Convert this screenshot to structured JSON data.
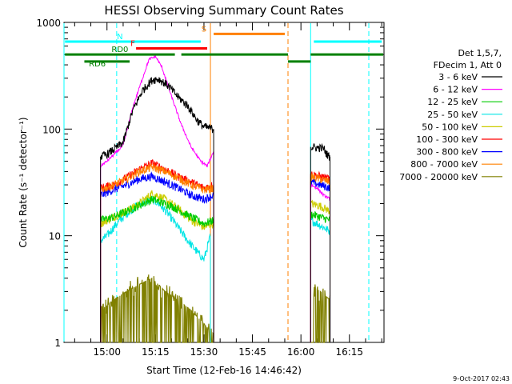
{
  "chart_data": {
    "type": "line",
    "title": "HESSI Observing Summary Count Rates",
    "xlabel": "Start Time (12-Feb-16 14:46:42)",
    "ylabel": "Count Rate (s⁻¹ detector⁻¹)",
    "yscale": "log",
    "ylim": [
      1,
      1000
    ],
    "xlim": [
      "14:46:42",
      "16:25:42"
    ],
    "yticks": [
      "1",
      "10",
      "100",
      "1000"
    ],
    "xticks": [
      "15:00",
      "15:15",
      "15:30",
      "15:45",
      "16:00",
      "16:15"
    ],
    "footer": "9-Oct-2017 02:43",
    "legend": {
      "header": [
        "Det 1,5,7,",
        "FDecim 1, Att 0"
      ],
      "placement": "right"
    },
    "series": [
      {
        "name": "3 - 6 keV",
        "color": "#000000",
        "x": [
          "14:58",
          "15:00",
          "15:05",
          "15:08",
          "15:11",
          "15:14",
          "15:16",
          "15:19",
          "15:22",
          "15:25",
          "15:28",
          "15:30",
          "15:32",
          "15:33",
          "16:03",
          "16:05",
          "16:07",
          "16:08",
          "16:09"
        ],
        "y": [
          55,
          58,
          75,
          150,
          230,
          290,
          295,
          255,
          200,
          165,
          120,
          105,
          102,
          100,
          68,
          67,
          66,
          58,
          55
        ]
      },
      {
        "name": "6 - 12 keV",
        "color": "#ff00ff",
        "x": [
          "14:58",
          "15:00",
          "15:05",
          "15:08",
          "15:11",
          "15:13",
          "15:15",
          "15:17",
          "15:20",
          "15:23",
          "15:26",
          "15:29",
          "15:31",
          "15:33",
          "16:03",
          "16:05",
          "16:07",
          "16:09"
        ],
        "y": [
          45,
          50,
          70,
          160,
          300,
          450,
          480,
          380,
          200,
          110,
          68,
          50,
          45,
          62,
          30,
          28,
          24,
          22
        ]
      },
      {
        "name": "12 - 25 keV",
        "color": "#00cc00",
        "x": [
          "14:58",
          "15:02",
          "15:08",
          "15:14",
          "15:20",
          "15:26",
          "15:30",
          "15:33",
          "16:03",
          "16:06",
          "16:09"
        ],
        "y": [
          14,
          15,
          18,
          22,
          19,
          15,
          13,
          14,
          16,
          15,
          14
        ]
      },
      {
        "name": "25 - 50 keV",
        "color": "#00e5e5",
        "x": [
          "14:58",
          "15:00",
          "15:03",
          "15:06",
          "15:09",
          "15:12",
          "15:14",
          "15:16",
          "15:19",
          "15:22",
          "15:25",
          "15:28",
          "15:30",
          "15:32",
          "16:03",
          "16:05",
          "16:07",
          "16:09"
        ],
        "y": [
          9,
          10,
          13,
          16,
          19,
          21,
          22,
          20,
          16,
          12,
          9,
          7,
          6,
          10,
          14,
          13,
          12,
          11
        ]
      },
      {
        "name": "50 - 100 keV",
        "color": "#cccc00",
        "x": [
          "14:58",
          "15:02",
          "15:06",
          "15:10",
          "15:14",
          "15:18",
          "15:22",
          "15:26",
          "15:30",
          "15:33",
          "16:03",
          "16:06",
          "16:09"
        ],
        "y": [
          13,
          15,
          17,
          20,
          25,
          22,
          18,
          14,
          12,
          13,
          20,
          19,
          17
        ]
      },
      {
        "name": "100 - 300 keV",
        "color": "#ff0000",
        "x": [
          "14:58",
          "15:02",
          "15:06",
          "15:10",
          "15:14",
          "15:18",
          "15:22",
          "15:26",
          "15:30",
          "15:33",
          "16:03",
          "16:06",
          "16:09"
        ],
        "y": [
          28,
          30,
          35,
          42,
          48,
          42,
          36,
          32,
          28,
          30,
          38,
          36,
          34
        ]
      },
      {
        "name": "300 - 800 keV",
        "color": "#0000ff",
        "x": [
          "14:58",
          "15:02",
          "15:06",
          "15:10",
          "15:14",
          "15:18",
          "15:22",
          "15:26",
          "15:30",
          "15:33",
          "16:03",
          "16:06",
          "16:09"
        ],
        "y": [
          24,
          27,
          30,
          34,
          36,
          32,
          28,
          24,
          22,
          24,
          32,
          30,
          28
        ]
      },
      {
        "name": "800 - 7000 keV",
        "color": "#ff8000",
        "x": [
          "14:58",
          "15:02",
          "15:06",
          "15:10",
          "15:14",
          "15:18",
          "15:22",
          "15:26",
          "15:30",
          "15:33",
          "16:03",
          "16:06",
          "16:09"
        ],
        "y": [
          27,
          30,
          34,
          40,
          44,
          40,
          35,
          30,
          27,
          28,
          36,
          34,
          32
        ]
      },
      {
        "name": "7000 - 20000 keV",
        "color": "#808000",
        "x": [
          "14:58",
          "15:02",
          "15:06",
          "15:10",
          "15:14",
          "15:18",
          "15:22",
          "15:26",
          "15:30",
          "15:33",
          "16:03",
          "16:06",
          "16:09"
        ],
        "y": [
          2.0,
          2.5,
          3.0,
          3.5,
          4.0,
          3.0,
          2.5,
          2.0,
          1.5,
          1.2,
          3.5,
          3.0,
          2.5
        ]
      }
    ],
    "flags": [
      {
        "label": "N",
        "color": "#00ffff",
        "level": 660,
        "segments": [
          [
            "14:47",
            "15:29"
          ],
          [
            "16:04",
            "16:25"
          ]
        ]
      },
      {
        "label": "F",
        "color": "#ff0000",
        "level": 570,
        "segments": [
          [
            "15:09",
            "15:31"
          ]
        ]
      },
      {
        "label": "S",
        "color": "#ff8000",
        "level": 780,
        "segments": [
          [
            "15:33",
            "15:55"
          ]
        ]
      },
      {
        "label": "RD0",
        "color": "#008000",
        "level": 500,
        "segments": [
          [
            "14:47",
            "15:21"
          ],
          [
            "15:23",
            "15:56"
          ],
          [
            "16:03",
            "16:26"
          ]
        ]
      },
      {
        "label": "RD6",
        "color": "#008000",
        "level": 430,
        "segments": [
          [
            "14:53",
            "15:07"
          ],
          [
            "15:56",
            "16:03"
          ]
        ]
      }
    ],
    "vlines": [
      {
        "time": "14:46:42",
        "color": "#00ffff",
        "style": "solid"
      },
      {
        "time": "15:03",
        "color": "#00ffff",
        "style": "dashed"
      },
      {
        "time": "15:32",
        "color": "#ff8000",
        "style": "solid"
      },
      {
        "time": "15:56",
        "color": "#ff8000",
        "style": "dashed"
      },
      {
        "time": "16:03",
        "color": "#00ffff",
        "style": "solid"
      },
      {
        "time": "16:21",
        "color": "#00ffff",
        "style": "dashed"
      }
    ],
    "data_gaps": [
      [
        "15:33",
        "16:03"
      ]
    ]
  }
}
